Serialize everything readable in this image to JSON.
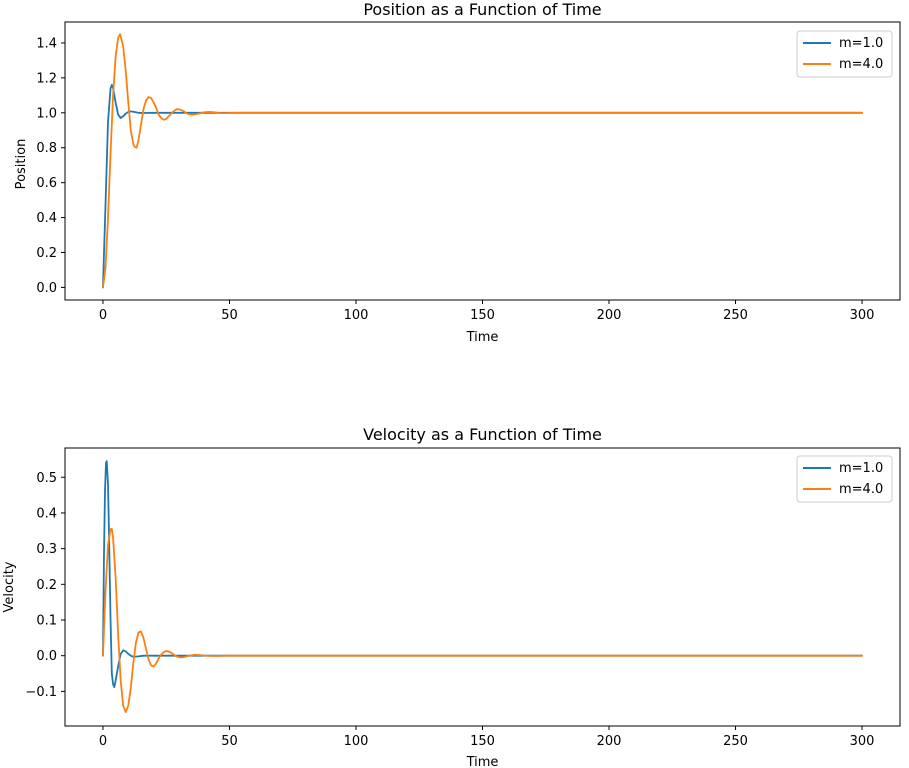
{
  "colors": {
    "m1": "#1f77b4",
    "m4": "#ff7f0e"
  },
  "chart_data": [
    {
      "type": "line",
      "title": "Position as a Function of Time",
      "xlabel": "Time",
      "ylabel": "Position",
      "xlim": [
        -15,
        315
      ],
      "ylim": [
        -0.072,
        1.52
      ],
      "xticks": [
        0,
        50,
        100,
        150,
        200,
        250,
        300
      ],
      "xtick_labels": [
        "0",
        "50",
        "100",
        "150",
        "200",
        "250",
        "300"
      ],
      "yticks": [
        0.0,
        0.2,
        0.4,
        0.6,
        0.8,
        1.0,
        1.2,
        1.4
      ],
      "ytick_labels": [
        "0.0",
        "0.2",
        "0.4",
        "0.6",
        "0.8",
        "1.0",
        "1.2",
        "1.4"
      ],
      "legend": {
        "placement": "top-right"
      },
      "series": [
        {
          "name": "m=1.0",
          "color": "#1f77b4",
          "x": [
            0,
            1,
            2,
            3,
            3.5,
            4,
            5,
            6,
            7,
            8,
            9,
            10,
            11,
            12,
            14,
            16,
            20,
            25,
            300
          ],
          "y": [
            0,
            0.47,
            0.95,
            1.14,
            1.16,
            1.14,
            1.06,
            0.99,
            0.97,
            0.98,
            0.995,
            1.005,
            1.008,
            1.006,
            1.0,
            0.999,
            1.0,
            1.0,
            1.0
          ]
        },
        {
          "name": "m=4.0",
          "color": "#ff7f0e",
          "x": [
            0,
            1,
            2,
            3,
            4,
            5,
            6,
            6.8,
            8,
            9,
            10,
            11,
            12,
            12.5,
            13.3,
            14,
            15,
            16,
            17,
            18,
            19,
            20,
            21,
            22,
            23,
            24,
            25,
            26,
            27,
            28,
            29,
            30,
            31,
            32,
            33,
            34,
            36,
            38,
            40,
            42,
            44,
            46,
            48,
            52,
            56,
            60,
            300
          ],
          "y": [
            0,
            0.11,
            0.4,
            0.77,
            1.1,
            1.32,
            1.43,
            1.45,
            1.38,
            1.24,
            1.06,
            0.9,
            0.82,
            0.805,
            0.8,
            0.84,
            0.93,
            1.02,
            1.07,
            1.09,
            1.085,
            1.06,
            1.03,
            0.99,
            0.97,
            0.96,
            0.965,
            0.98,
            0.995,
            1.01,
            1.02,
            1.02,
            1.015,
            1.008,
            0.998,
            0.992,
            0.99,
            0.996,
            1.003,
            1.005,
            1.003,
            0.999,
            0.998,
            1.0,
            1.0,
            1.0,
            1.0
          ]
        }
      ]
    },
    {
      "type": "line",
      "title": "Velocity as a Function of Time",
      "xlabel": "Time",
      "ylabel": "Velocity",
      "xlim": [
        -15,
        315
      ],
      "ylim": [
        -0.197,
        0.582
      ],
      "xticks": [
        0,
        50,
        100,
        150,
        200,
        250,
        300
      ],
      "xtick_labels": [
        "0",
        "50",
        "100",
        "150",
        "200",
        "250",
        "300"
      ],
      "yticks": [
        -0.1,
        0.0,
        0.1,
        0.2,
        0.3,
        0.4,
        0.5
      ],
      "ytick_labels": [
        "−0.1",
        "0.0",
        "0.1",
        "0.2",
        "0.3",
        "0.4",
        "0.5"
      ],
      "legend": {
        "placement": "top-right"
      },
      "series": [
        {
          "name": "m=1.0",
          "color": "#1f77b4",
          "x": [
            0,
            0.4,
            0.8,
            1.2,
            1.5,
            2,
            2.5,
            3,
            3.5,
            4,
            4.5,
            5,
            6,
            7,
            8,
            9,
            10,
            11,
            12,
            14,
            16,
            20,
            300
          ],
          "y": [
            0,
            0.28,
            0.46,
            0.54,
            0.545,
            0.48,
            0.3,
            0.1,
            -0.05,
            -0.08,
            -0.088,
            -0.07,
            -0.03,
            0.005,
            0.015,
            0.012,
            0.005,
            0.0,
            -0.003,
            -0.002,
            0.0,
            0.0,
            0.0
          ]
        },
        {
          "name": "m=4.0",
          "color": "#ff7f0e",
          "x": [
            0,
            1,
            2,
            3,
            3.5,
            4,
            5,
            6,
            7,
            8,
            9,
            10,
            11,
            12,
            13,
            14,
            15,
            16,
            17,
            18,
            19,
            20,
            21,
            22,
            23,
            24,
            25,
            26,
            27,
            28,
            29,
            30,
            31,
            32,
            33,
            34,
            35,
            36,
            38,
            40,
            42,
            44,
            46,
            48,
            52,
            56,
            60,
            300
          ],
          "y": [
            0,
            0.18,
            0.31,
            0.355,
            0.355,
            0.33,
            0.22,
            0.06,
            -0.07,
            -0.14,
            -0.158,
            -0.14,
            -0.09,
            -0.02,
            0.035,
            0.065,
            0.068,
            0.05,
            0.02,
            -0.01,
            -0.027,
            -0.03,
            -0.022,
            -0.008,
            0.003,
            0.01,
            0.013,
            0.012,
            0.008,
            0.003,
            -0.002,
            -0.004,
            -0.005,
            -0.004,
            -0.002,
            0.0,
            0.001,
            0.0025,
            0.002,
            0.0005,
            -0.0005,
            -0.0008,
            -0.0005,
            0.0,
            0.0,
            0.0,
            0.0,
            0.0
          ]
        }
      ]
    }
  ]
}
